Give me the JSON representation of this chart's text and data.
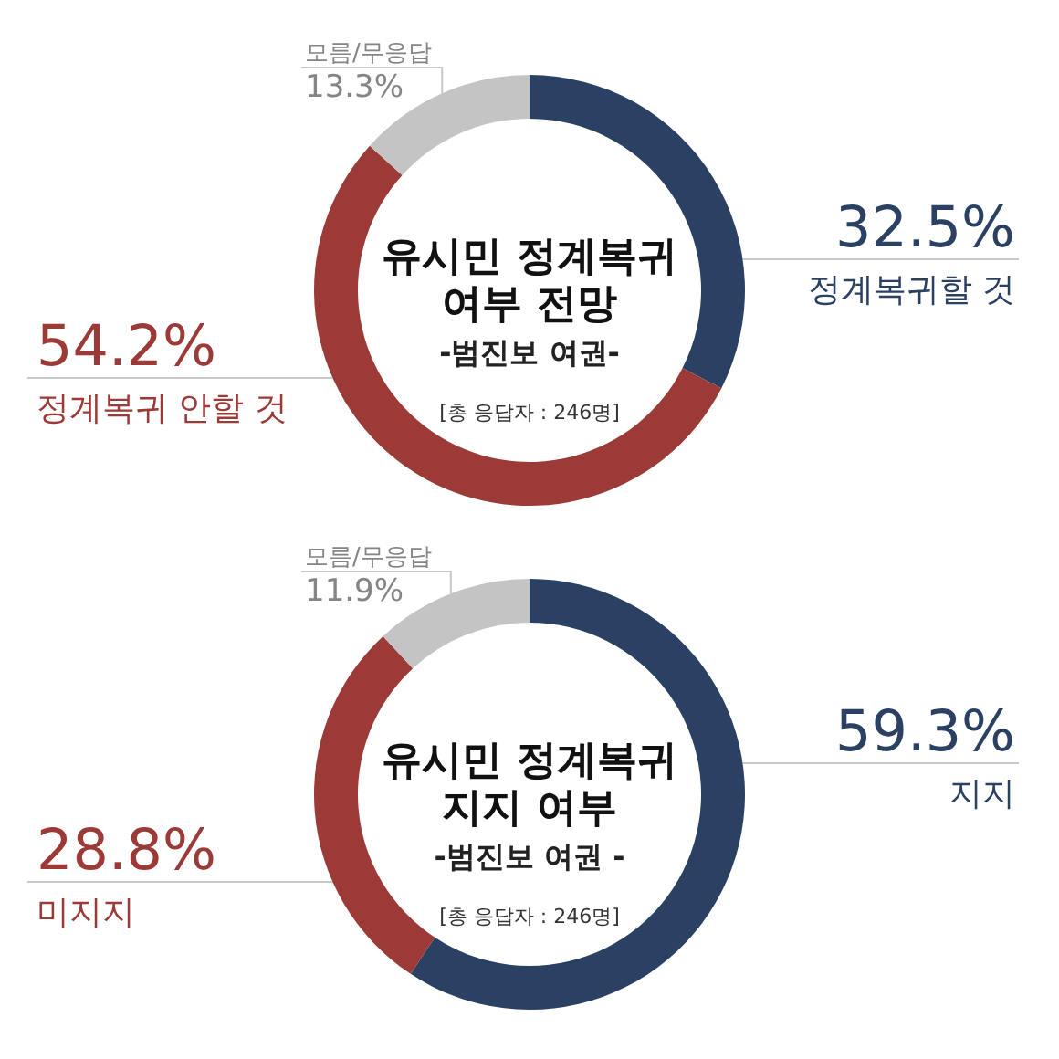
{
  "chart_data": [
    {
      "type": "donut",
      "title": "유시민 정계복귀\n여부 전망",
      "subtitle": "-범진보 여권-",
      "annotations": [
        "[총 응답자 : 246명]"
      ],
      "categories": [
        "정계복귀할 것",
        "정계복귀 안할 것",
        "모름/무응답"
      ],
      "values": [
        32.5,
        54.2,
        13.3
      ],
      "value_labels": [
        "32.5%",
        "54.2%",
        "13.3%"
      ],
      "colors": [
        "#2b4163",
        "#9b3a36",
        "#c4c4c4"
      ]
    },
    {
      "type": "donut",
      "title": "유시민 정계복귀\n지지 여부",
      "subtitle": "-범진보 여권 -",
      "annotations": [
        "[총 응답자 : 246명]"
      ],
      "categories": [
        "지지",
        "미지지",
        "모름/무응답"
      ],
      "values": [
        59.3,
        28.8,
        11.9
      ],
      "value_labels": [
        "59.3%",
        "28.8%",
        "11.9%"
      ],
      "colors": [
        "#2b4163",
        "#9b3a36",
        "#c4c4c4"
      ]
    }
  ]
}
